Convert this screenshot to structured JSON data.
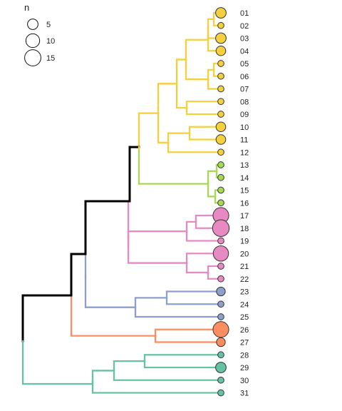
{
  "legend": {
    "title": "n",
    "entries": [
      {
        "label": "5",
        "value": 5
      },
      {
        "label": "10",
        "value": 10
      },
      {
        "label": "15",
        "value": 15
      }
    ]
  },
  "clade_colors": {
    "yellow": "#f4d03f",
    "green": "#a6d854",
    "pink": "#e78ac3",
    "blue": "#8da0cb",
    "orange": "#fc8d62",
    "teal": "#66c2a5",
    "root": "#000000"
  },
  "tips": [
    {
      "label": "01",
      "n": 5,
      "clade": "yellow"
    },
    {
      "label": "02",
      "n": 1,
      "clade": "yellow"
    },
    {
      "label": "03",
      "n": 5,
      "clade": "yellow"
    },
    {
      "label": "04",
      "n": 4,
      "clade": "yellow"
    },
    {
      "label": "05",
      "n": 1,
      "clade": "yellow"
    },
    {
      "label": "06",
      "n": 1,
      "clade": "yellow"
    },
    {
      "label": "07",
      "n": 1,
      "clade": "yellow"
    },
    {
      "label": "08",
      "n": 1,
      "clade": "yellow"
    },
    {
      "label": "09",
      "n": 1,
      "clade": "yellow"
    },
    {
      "label": "10",
      "n": 4,
      "clade": "yellow"
    },
    {
      "label": "11",
      "n": 4,
      "clade": "yellow"
    },
    {
      "label": "12",
      "n": 1,
      "clade": "yellow"
    },
    {
      "label": "13",
      "n": 1,
      "clade": "green"
    },
    {
      "label": "14",
      "n": 1,
      "clade": "green"
    },
    {
      "label": "15",
      "n": 1,
      "clade": "green"
    },
    {
      "label": "16",
      "n": 1,
      "clade": "green"
    },
    {
      "label": "17",
      "n": 14,
      "clade": "pink"
    },
    {
      "label": "18",
      "n": 16,
      "clade": "pink"
    },
    {
      "label": "19",
      "n": 1,
      "clade": "pink"
    },
    {
      "label": "20",
      "n": 13,
      "clade": "pink"
    },
    {
      "label": "21",
      "n": 1,
      "clade": "pink"
    },
    {
      "label": "22",
      "n": 1,
      "clade": "pink"
    },
    {
      "label": "23",
      "n": 3,
      "clade": "blue"
    },
    {
      "label": "24",
      "n": 1,
      "clade": "blue"
    },
    {
      "label": "25",
      "n": 1,
      "clade": "blue"
    },
    {
      "label": "26",
      "n": 14,
      "clade": "orange"
    },
    {
      "label": "27",
      "n": 3,
      "clade": "orange"
    },
    {
      "label": "28",
      "n": 1,
      "clade": "teal"
    },
    {
      "label": "29",
      "n": 5,
      "clade": "teal"
    },
    {
      "label": "30",
      "n": 1,
      "clade": "teal"
    },
    {
      "label": "31",
      "n": 1,
      "clade": "teal"
    }
  ]
}
